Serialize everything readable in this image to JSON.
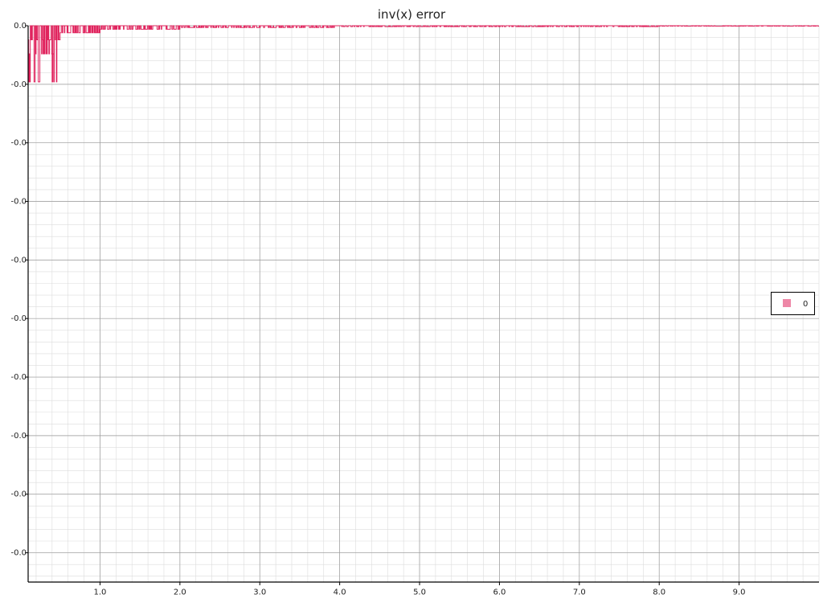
{
  "chart_data": {
    "type": "line",
    "title": "inv(x) error",
    "xlabel": "",
    "ylabel": "",
    "xlim": [
      0.1,
      10.0
    ],
    "ylim": [
      -0.095,
      0.0
    ],
    "x_tick_labels": [
      "1.0",
      "2.0",
      "3.0",
      "4.0",
      "5.0",
      "6.0",
      "7.0",
      "8.0",
      "9.0"
    ],
    "x_tick_values": [
      1,
      2,
      3,
      4,
      5,
      6,
      7,
      8,
      9
    ],
    "y_tick_labels": [
      "0.0",
      "-0.0",
      "-0.0",
      "-0.0",
      "-0.0",
      "-0.0",
      "-0.0",
      "-0.0",
      "-0.0",
      "-0.0"
    ],
    "y_tick_values": [
      0.0,
      -0.01,
      -0.02,
      -0.03,
      -0.04,
      -0.05,
      -0.06,
      -0.07,
      -0.08,
      -0.09
    ],
    "grid": true,
    "legend_position": "right",
    "series": [
      {
        "name": "0",
        "color": "#e0245e",
        "segments": [
          {
            "x_start": 0.1,
            "x_end": 0.5,
            "levels": [
              0.0,
              -0.0024,
              -0.0048,
              -0.0096
            ]
          },
          {
            "x_start": 0.5,
            "x_end": 1.0,
            "levels": [
              0.0,
              -0.0012
            ]
          },
          {
            "x_start": 1.0,
            "x_end": 2.0,
            "levels": [
              0.0,
              -0.0006
            ]
          },
          {
            "x_start": 2.0,
            "x_end": 4.0,
            "levels": [
              0.0,
              -0.0003
            ]
          },
          {
            "x_start": 4.0,
            "x_end": 8.0,
            "levels": [
              0.0,
              -0.00015
            ]
          },
          {
            "x_start": 8.0,
            "x_end": 10.0,
            "levels": [
              0.0,
              -7.5e-05
            ]
          }
        ]
      }
    ]
  }
}
